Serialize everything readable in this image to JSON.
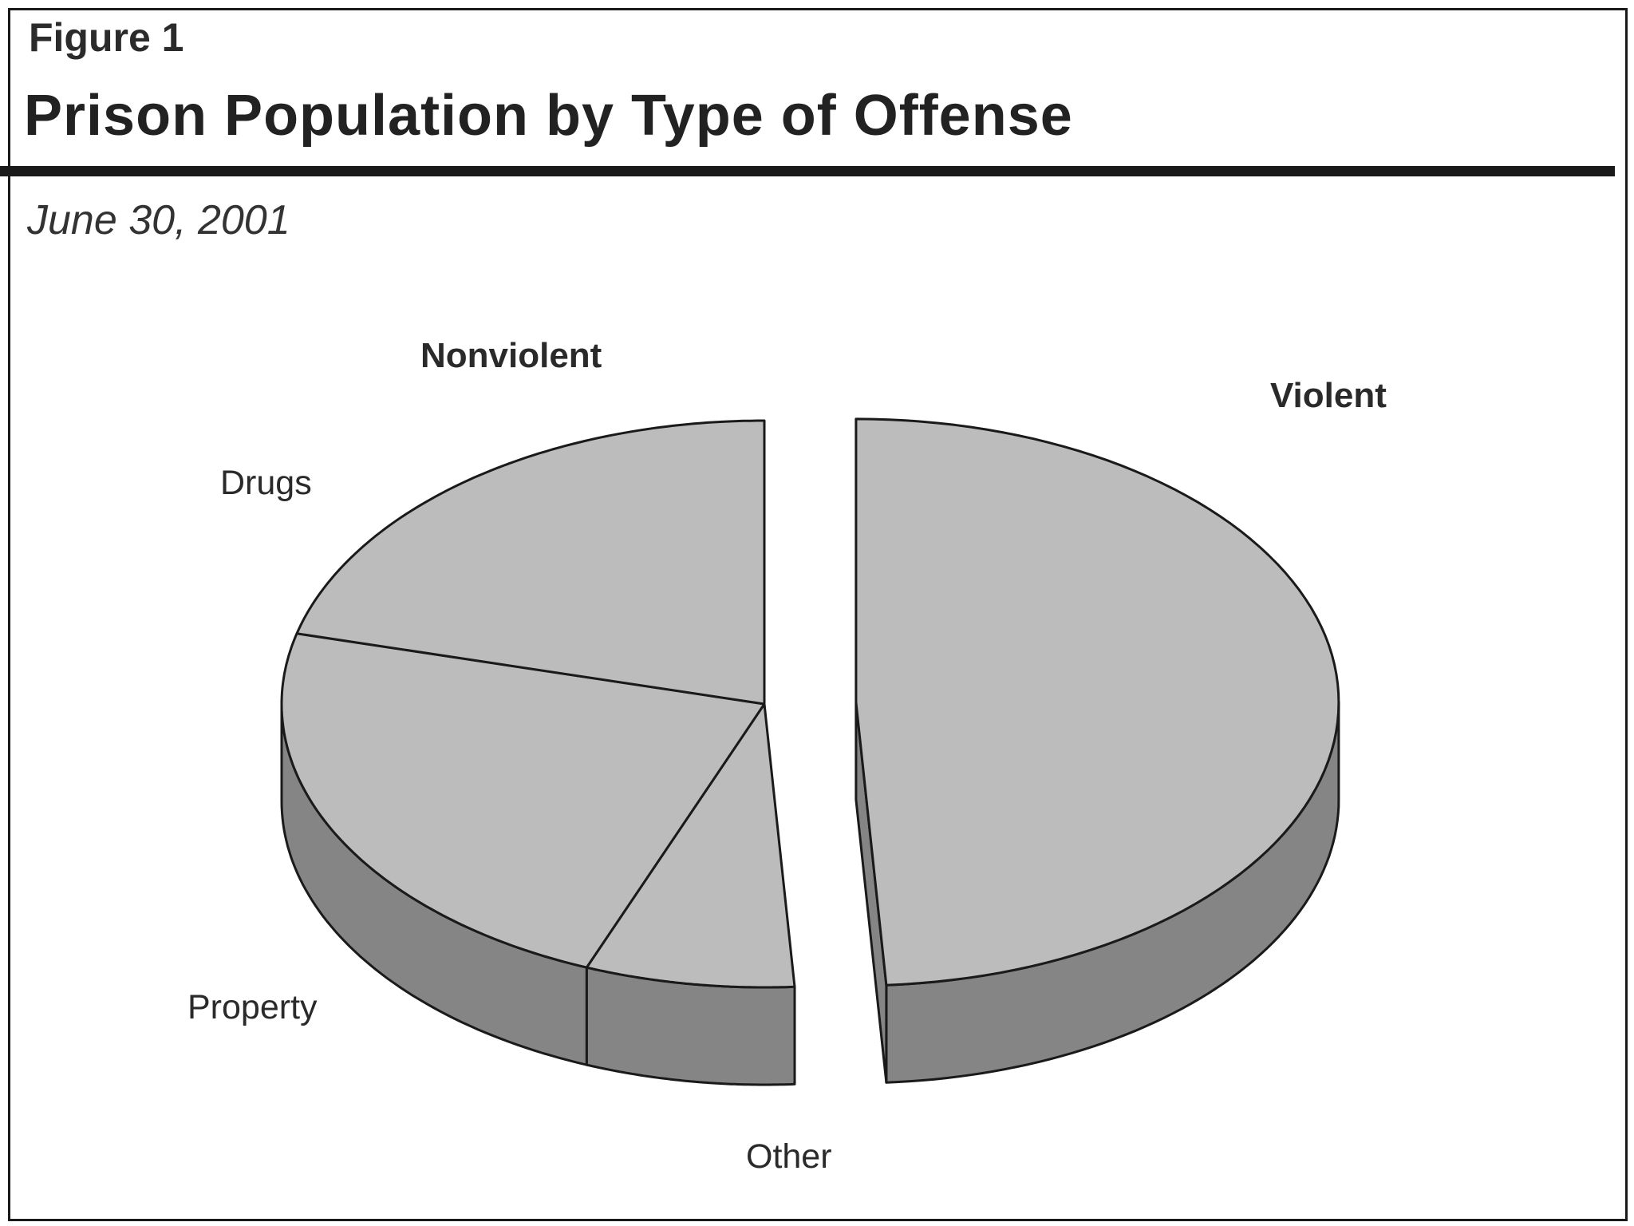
{
  "figure_label": "Figure 1",
  "chart_data": {
    "type": "pie",
    "title": "Prison Population by Type of Offense",
    "subtitle": "June 30, 2001",
    "style": "3d-exploded",
    "groups": [
      {
        "name": "Nonviolent",
        "slices": [
          "Drugs",
          "Property",
          "Other"
        ]
      },
      {
        "name": "Violent",
        "slices": [
          "Violent"
        ]
      }
    ],
    "slices": [
      {
        "label": "Violent",
        "value": 49,
        "group": "Violent",
        "exploded": true
      },
      {
        "label": "Other",
        "value": 7,
        "group": "Nonviolent",
        "exploded": false
      },
      {
        "label": "Property",
        "value": 23,
        "group": "Nonviolent",
        "exploded": false
      },
      {
        "label": "Drugs",
        "value": 21,
        "group": "Nonviolent",
        "exploded": false
      }
    ],
    "colors": {
      "top": "#bdbcbd",
      "side": "#868586",
      "outline": "#1a1a1a"
    }
  }
}
